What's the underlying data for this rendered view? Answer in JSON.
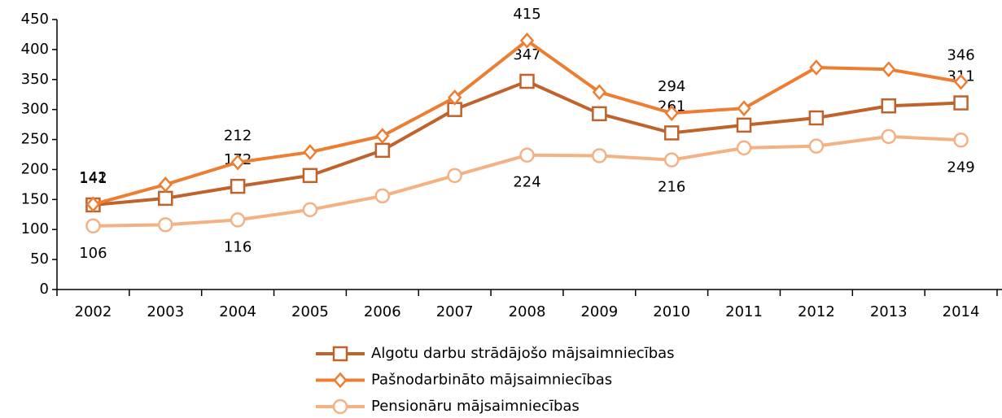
{
  "chart_data": {
    "type": "line",
    "categories": [
      "2002",
      "2003",
      "2004",
      "2005",
      "2006",
      "2007",
      "2008",
      "2009",
      "2010",
      "2011",
      "2012",
      "2013",
      "2014"
    ],
    "ylim": [
      0,
      450
    ],
    "yticks": [
      0,
      50,
      100,
      150,
      200,
      250,
      300,
      350,
      400,
      450
    ],
    "legend": "bottom",
    "series": [
      {
        "name": "Algotu darbu strādājošo mājsaimniecības",
        "color": "#c0622b",
        "marker": "square",
        "label_position": "above",
        "values": [
          141,
          152,
          172,
          190,
          232,
          300,
          347,
          293,
          261,
          274,
          286,
          306,
          311
        ],
        "value_labels": [
          "141",
          null,
          "172",
          null,
          null,
          null,
          "347",
          null,
          "261",
          null,
          null,
          null,
          "311"
        ]
      },
      {
        "name": "Pašnodarbināto mājsaimniecības",
        "color": "#ed7d31",
        "marker": "diamond",
        "label_position": "above",
        "values": [
          142,
          175,
          212,
          229,
          256,
          320,
          415,
          329,
          294,
          302,
          370,
          367,
          346
        ],
        "value_labels": [
          "142",
          null,
          "212",
          null,
          null,
          null,
          "415",
          null,
          "294",
          null,
          null,
          null,
          "346"
        ]
      },
      {
        "name": "Pensionāru mājsaimniecības",
        "color": "#f4b183",
        "marker": "circle",
        "label_position": "below",
        "values": [
          106,
          108,
          116,
          133,
          156,
          190,
          224,
          223,
          216,
          236,
          239,
          255,
          249
        ],
        "value_labels": [
          "106",
          null,
          "116",
          null,
          null,
          null,
          "224",
          null,
          "216",
          null,
          null,
          null,
          "249"
        ]
      }
    ]
  }
}
